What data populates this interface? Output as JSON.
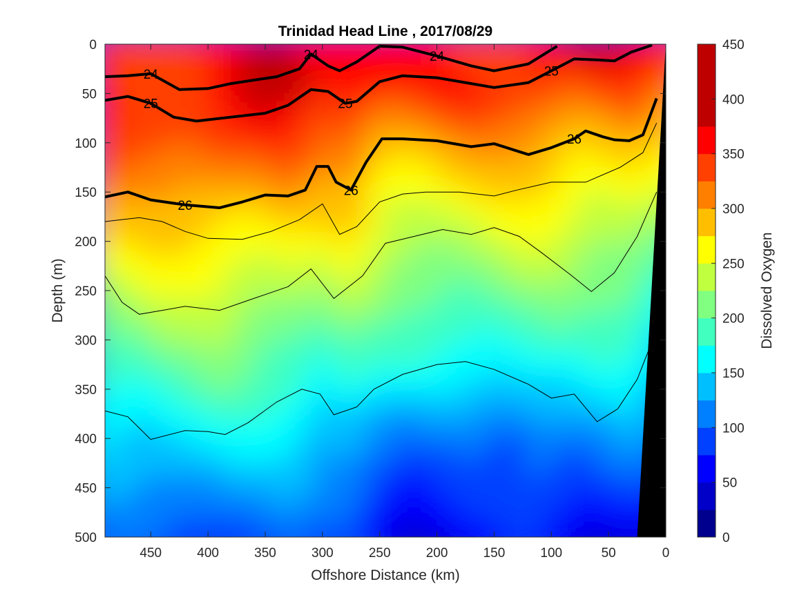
{
  "chart_data": {
    "type": "heatmap",
    "title": "Trinidad Head Line , 2017/08/29",
    "xlabel": "Offshore Distance (km)",
    "ylabel": "Depth (m)",
    "colorbar_label": "Dissolved Oxygen",
    "xlim": [
      490,
      0
    ],
    "ylim": [
      0,
      500
    ],
    "x_reversed": true,
    "y_reversed": true,
    "x_ticks": [
      450,
      400,
      350,
      300,
      250,
      200,
      150,
      100,
      50,
      0
    ],
    "y_ticks": [
      0,
      50,
      100,
      150,
      200,
      250,
      300,
      350,
      400,
      450,
      500
    ],
    "color_levels": [
      0,
      25,
      50,
      75,
      100,
      125,
      150,
      175,
      200,
      225,
      250,
      275,
      300,
      325,
      350,
      375,
      400,
      425,
      450
    ],
    "colorbar_ticks": [
      0,
      50,
      100,
      150,
      200,
      250,
      300,
      350,
      400,
      450
    ],
    "colormap": [
      "#00008f",
      "#0000c8",
      "#0000ff",
      "#0040ff",
      "#0080ff",
      "#00bfff",
      "#00ffff",
      "#40ffbf",
      "#80ff80",
      "#bfff40",
      "#ffff00",
      "#ffbf00",
      "#ff8000",
      "#ff4000",
      "#ff0000",
      "#bf0000"
    ],
    "grid": false,
    "contour_color": "#000000",
    "seafloor_color": "#000000",
    "isopycnals": [
      {
        "label": "24",
        "points": [
          [
            490,
            33
          ],
          [
            470,
            32
          ],
          [
            450,
            30
          ],
          [
            425,
            46
          ],
          [
            400,
            45
          ],
          [
            380,
            40
          ],
          [
            340,
            33
          ],
          [
            320,
            25
          ],
          [
            310,
            10
          ],
          [
            295,
            22
          ],
          [
            285,
            27
          ],
          [
            270,
            18
          ],
          [
            250,
            2
          ],
          [
            230,
            3
          ],
          [
            200,
            12
          ],
          [
            170,
            22
          ],
          [
            150,
            27
          ],
          [
            120,
            20
          ],
          [
            95,
            2
          ]
        ]
      },
      {
        "label": "25",
        "points": [
          [
            490,
            57
          ],
          [
            470,
            53
          ],
          [
            450,
            60
          ],
          [
            430,
            74
          ],
          [
            410,
            78
          ],
          [
            380,
            74
          ],
          [
            350,
            70
          ],
          [
            330,
            62
          ],
          [
            310,
            46
          ],
          [
            295,
            48
          ],
          [
            280,
            60
          ],
          [
            270,
            58
          ],
          [
            250,
            38
          ],
          [
            230,
            32
          ],
          [
            200,
            34
          ],
          [
            170,
            40
          ],
          [
            150,
            44
          ],
          [
            120,
            39
          ],
          [
            100,
            27
          ],
          [
            80,
            15
          ],
          [
            60,
            16
          ],
          [
            45,
            17
          ],
          [
            30,
            8
          ],
          [
            12,
            1
          ]
        ]
      },
      {
        "label": "26",
        "points": [
          [
            490,
            155
          ],
          [
            470,
            150
          ],
          [
            450,
            158
          ],
          [
            420,
            163
          ],
          [
            390,
            166
          ],
          [
            370,
            160
          ],
          [
            350,
            153
          ],
          [
            330,
            154
          ],
          [
            315,
            148
          ],
          [
            305,
            124
          ],
          [
            295,
            124
          ],
          [
            288,
            140
          ],
          [
            275,
            148
          ],
          [
            262,
            120
          ],
          [
            248,
            96
          ],
          [
            230,
            96
          ],
          [
            200,
            98
          ],
          [
            170,
            104
          ],
          [
            150,
            101
          ],
          [
            120,
            112
          ],
          [
            100,
            105
          ],
          [
            80,
            96
          ],
          [
            70,
            88
          ],
          [
            55,
            94
          ],
          [
            45,
            97
          ],
          [
            32,
            98
          ],
          [
            20,
            92
          ],
          [
            8,
            55
          ]
        ]
      }
    ],
    "thin_contours": [
      {
        "points": [
          [
            490,
            180
          ],
          [
            460,
            176
          ],
          [
            440,
            180
          ],
          [
            420,
            190
          ],
          [
            400,
            197
          ],
          [
            370,
            198
          ],
          [
            345,
            190
          ],
          [
            320,
            178
          ],
          [
            300,
            162
          ],
          [
            285,
            193
          ],
          [
            270,
            185
          ],
          [
            250,
            160
          ],
          [
            230,
            152
          ],
          [
            210,
            150
          ],
          [
            180,
            150
          ],
          [
            150,
            154
          ],
          [
            130,
            148
          ],
          [
            100,
            140
          ],
          [
            70,
            140
          ],
          [
            40,
            125
          ],
          [
            20,
            110
          ],
          [
            8,
            80
          ]
        ]
      },
      {
        "points": [
          [
            490,
            235
          ],
          [
            475,
            262
          ],
          [
            460,
            274
          ],
          [
            440,
            270
          ],
          [
            420,
            266
          ],
          [
            390,
            270
          ],
          [
            360,
            258
          ],
          [
            330,
            246
          ],
          [
            310,
            228
          ],
          [
            290,
            258
          ],
          [
            265,
            235
          ],
          [
            245,
            202
          ],
          [
            220,
            195
          ],
          [
            195,
            188
          ],
          [
            170,
            193
          ],
          [
            150,
            186
          ],
          [
            128,
            195
          ],
          [
            108,
            212
          ],
          [
            82,
            235
          ],
          [
            65,
            251
          ],
          [
            45,
            232
          ],
          [
            25,
            195
          ],
          [
            8,
            150
          ]
        ]
      },
      {
        "points": [
          [
            490,
            372
          ],
          [
            470,
            378
          ],
          [
            450,
            401
          ],
          [
            420,
            392
          ],
          [
            400,
            393
          ],
          [
            385,
            396
          ],
          [
            365,
            384
          ],
          [
            340,
            363
          ],
          [
            318,
            350
          ],
          [
            302,
            355
          ],
          [
            290,
            376
          ],
          [
            270,
            368
          ],
          [
            255,
            350
          ],
          [
            230,
            335
          ],
          [
            200,
            325
          ],
          [
            175,
            322
          ],
          [
            150,
            330
          ],
          [
            120,
            345
          ],
          [
            100,
            359
          ],
          [
            80,
            355
          ],
          [
            60,
            383
          ],
          [
            42,
            370
          ],
          [
            25,
            340
          ],
          [
            8,
            290
          ]
        ]
      }
    ]
  }
}
